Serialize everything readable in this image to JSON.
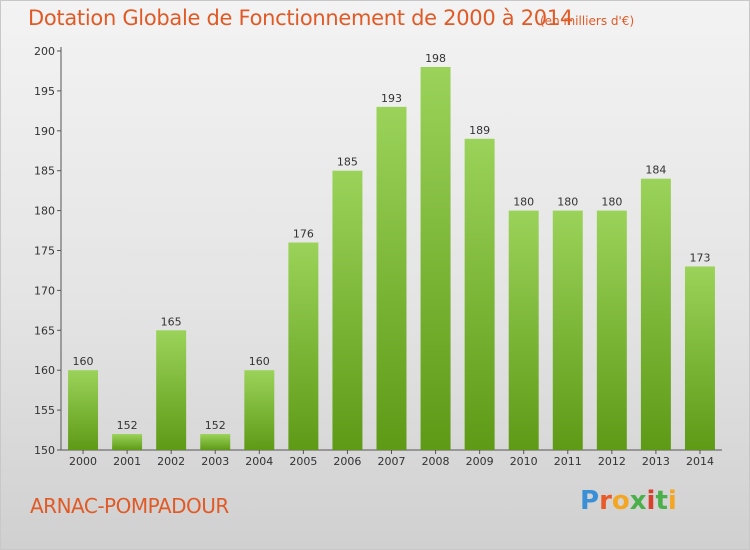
{
  "header": {
    "title": "Dotation Globale de Fonctionnement de 2000 à 2014",
    "subtitle": "(en milliers d'€)"
  },
  "footer": {
    "place": "ARNAC-POMPADOUR",
    "logo": "Proxiti"
  },
  "colors": {
    "bar_top": "#9bd35a",
    "bar_bottom": "#5e9a16",
    "title": "#e15a26"
  },
  "chart_data": {
    "type": "bar",
    "title": "Dotation Globale de Fonctionnement de 2000 à 2014",
    "subtitle": "(en milliers d'€)",
    "categories": [
      "2000",
      "2001",
      "2002",
      "2003",
      "2004",
      "2005",
      "2006",
      "2007",
      "2008",
      "2009",
      "2010",
      "2011",
      "2012",
      "2013",
      "2014"
    ],
    "values": [
      160,
      152,
      165,
      152,
      160,
      176,
      185,
      193,
      198,
      189,
      180,
      180,
      180,
      184,
      173
    ],
    "ylim": [
      150,
      200
    ],
    "yticks": [
      150,
      155,
      160,
      165,
      170,
      175,
      180,
      185,
      190,
      195,
      200
    ],
    "grid": false
  }
}
